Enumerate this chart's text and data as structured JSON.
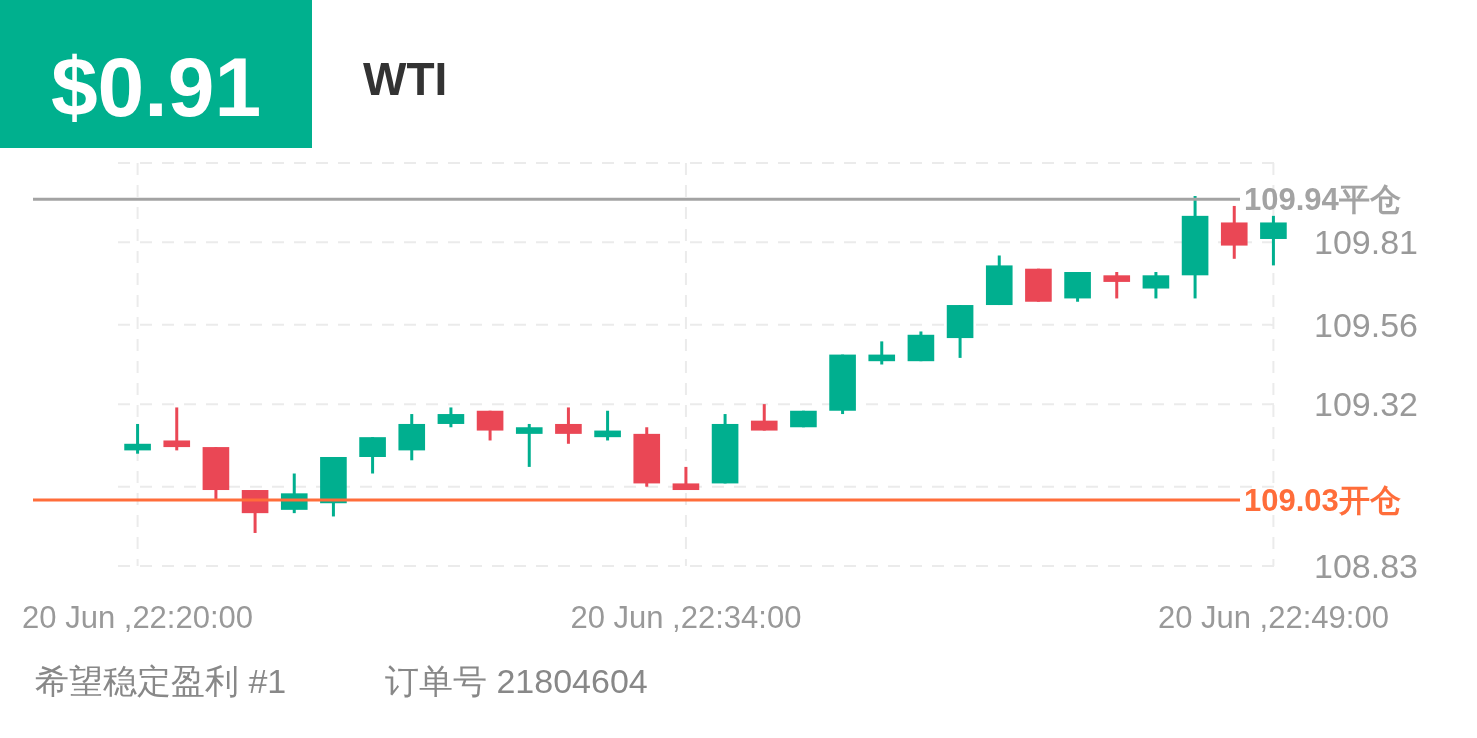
{
  "chart_data": {
    "type": "candlestick",
    "title": "$0.91",
    "subtitle": "WTI",
    "categories": [
      "20 Jun ,22:20:00",
      null,
      null,
      null,
      null,
      null,
      null,
      null,
      null,
      null,
      null,
      null,
      null,
      null,
      "20 Jun ,22:34:00",
      null,
      null,
      null,
      null,
      null,
      null,
      null,
      null,
      null,
      null,
      null,
      null,
      null,
      null,
      "20 Jun ,22:49:00"
    ],
    "ohlc": [
      [
        109.18,
        109.26,
        109.17,
        109.2
      ],
      [
        109.21,
        109.31,
        109.18,
        109.19
      ],
      [
        109.19,
        109.19,
        109.03,
        109.06
      ],
      [
        109.06,
        109.06,
        108.93,
        108.99
      ],
      [
        109.0,
        109.11,
        108.99,
        109.05
      ],
      [
        109.02,
        109.16,
        108.98,
        109.16
      ],
      [
        109.16,
        109.22,
        109.11,
        109.22
      ],
      [
        109.18,
        109.29,
        109.15,
        109.26
      ],
      [
        109.26,
        109.31,
        109.25,
        109.29
      ],
      [
        109.3,
        109.3,
        109.21,
        109.24
      ],
      [
        109.23,
        109.26,
        109.13,
        109.25
      ],
      [
        109.26,
        109.31,
        109.2,
        109.23
      ],
      [
        109.22,
        109.3,
        109.21,
        109.24
      ],
      [
        109.23,
        109.25,
        109.07,
        109.08
      ],
      [
        109.08,
        109.13,
        109.06,
        109.06
      ],
      [
        109.08,
        109.29,
        109.08,
        109.26
      ],
      [
        109.27,
        109.32,
        109.24,
        109.24
      ],
      [
        109.25,
        109.3,
        109.25,
        109.3
      ],
      [
        109.3,
        109.47,
        109.29,
        109.47
      ],
      [
        109.45,
        109.51,
        109.44,
        109.47
      ],
      [
        109.45,
        109.54,
        109.45,
        109.53
      ],
      [
        109.52,
        109.62,
        109.46,
        109.62
      ],
      [
        109.62,
        109.77,
        109.62,
        109.74
      ],
      [
        109.73,
        109.73,
        109.63,
        109.63
      ],
      [
        109.64,
        109.72,
        109.63,
        109.72
      ],
      [
        109.71,
        109.72,
        109.64,
        109.69
      ],
      [
        109.67,
        109.72,
        109.64,
        109.71
      ],
      [
        109.71,
        109.95,
        109.64,
        109.89
      ],
      [
        109.87,
        109.92,
        109.76,
        109.8
      ],
      [
        109.82,
        109.89,
        109.74,
        109.87
      ]
    ],
    "colors": [
      "#00af8f",
      "#ea4755",
      "#ea4755",
      "#ea4755",
      "#00af8f",
      "#00af8f",
      "#00af8f",
      "#00af8f",
      "#00af8f",
      "#ea4755",
      "#00af8f",
      "#ea4755",
      "#00af8f",
      "#ea4755",
      "#ea4755",
      "#00af8f",
      "#ea4755",
      "#00af8f",
      "#00af8f",
      "#00af8f",
      "#00af8f",
      "#00af8f",
      "#00af8f",
      "#ea4755",
      "#00af8f",
      "#ea4755",
      "#00af8f",
      "#00af8f",
      "#ea4755",
      "#00af8f"
    ],
    "ylim": [
      108.83,
      110.05
    ],
    "yticks": [
      108.83,
      {
        "value": 109.07,
        "label": null
      },
      109.32,
      109.56,
      109.81,
      {
        "value": 110.05,
        "label": null
      }
    ],
    "grid": true,
    "ref_lines": [
      {
        "axis": "y",
        "value": 109.94,
        "label": "109.94平仓",
        "color": "#a3a3a3"
      },
      {
        "axis": "y",
        "value": 109.03,
        "label": "109.03开仓",
        "color": "#ff6d3a"
      }
    ],
    "annotations": [
      "希望稳定盈利 #1",
      "订单号 21804604"
    ]
  }
}
